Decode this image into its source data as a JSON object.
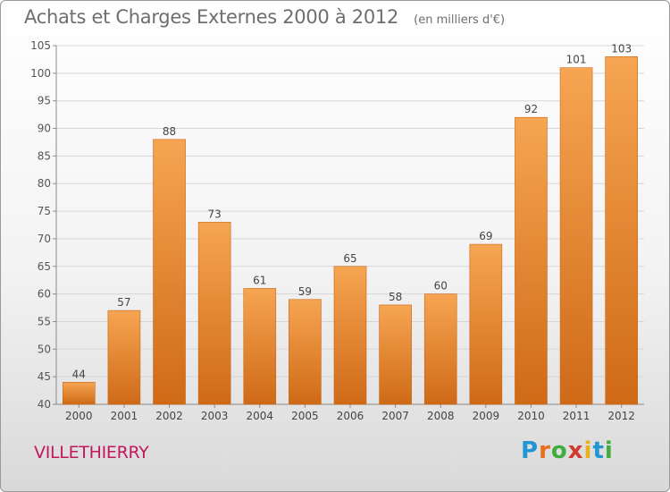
{
  "header": {
    "title": "Achats et Charges Externes 2000 à 2012",
    "unit": "(en milliers d'€)"
  },
  "commune": "VILLETHIERRY",
  "brand": {
    "letters": [
      "P",
      "r",
      "o",
      "x",
      "i",
      "t",
      "i"
    ],
    "colors": [
      "#2196d3",
      "#e8701a",
      "#3fae3f",
      "#d33a2c",
      "#e8b21a",
      "#2196d3",
      "#3fae3f"
    ]
  },
  "chart_data": {
    "type": "bar",
    "title": "Achats et Charges Externes 2000 à 2012",
    "subtitle": "(en milliers d'€)",
    "categories": [
      "2000",
      "2001",
      "2002",
      "2003",
      "2004",
      "2005",
      "2006",
      "2007",
      "2008",
      "2009",
      "2010",
      "2011",
      "2012"
    ],
    "values": [
      44,
      57,
      88,
      73,
      61,
      59,
      65,
      58,
      60,
      69,
      92,
      101,
      103
    ],
    "ylim": [
      40,
      105
    ],
    "yticks": [
      40,
      45,
      50,
      55,
      60,
      65,
      70,
      75,
      80,
      85,
      90,
      95,
      100,
      105
    ],
    "grid": true,
    "bar_color": "#f0892f",
    "data_labels": true
  }
}
